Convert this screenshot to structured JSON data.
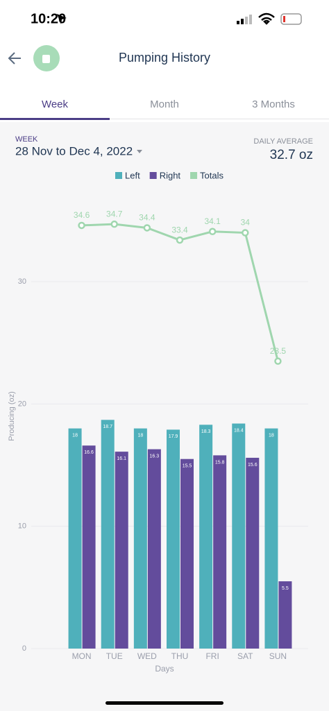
{
  "status": {
    "time": "10:20"
  },
  "header": {
    "title": "Pumping History"
  },
  "tabs": [
    "Week",
    "Month",
    "3 Months"
  ],
  "summary": {
    "period_label": "WEEK",
    "period": "28 Nov to Dec 4, 2022",
    "average_label": "DAILY AVERAGE",
    "average": "32.7 oz"
  },
  "chart_data": {
    "type": "bar",
    "categories": [
      "MON",
      "TUE",
      "WED",
      "THU",
      "FRI",
      "SAT",
      "SUN"
    ],
    "series": [
      {
        "name": "Left",
        "color": "#4fb0bb",
        "values": [
          18,
          18.7,
          18,
          17.9,
          18.3,
          18.4,
          18
        ]
      },
      {
        "name": "Right",
        "color": "#634c9c",
        "values": [
          16.6,
          16.1,
          16.3,
          15.5,
          15.8,
          15.6,
          5.5
        ]
      },
      {
        "name": "Totals",
        "type": "line",
        "color": "#9fd6ae",
        "values": [
          34.6,
          34.7,
          34.4,
          33.4,
          34.1,
          34,
          23.5
        ]
      }
    ],
    "y_label": "Producing (oz)",
    "x_label": "Days",
    "ylim": [
      0,
      38
    ],
    "yticks": [
      0,
      10,
      20,
      30
    ],
    "grid": true
  }
}
